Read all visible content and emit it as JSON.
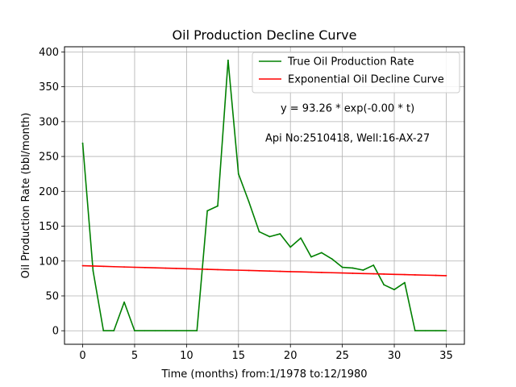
{
  "chart_data": {
    "type": "line",
    "title": "Oil Production Decline Curve",
    "xlabel": "Time (months) from:1/1978 to:12/1980",
    "ylabel": "Oil Production Rate (bbl/month)",
    "xlim": [
      -1.75,
      36.75
    ],
    "ylim": [
      -19.4,
      407.4
    ],
    "x_ticks": [
      0,
      5,
      10,
      15,
      20,
      25,
      30,
      35
    ],
    "y_ticks": [
      0,
      50,
      100,
      150,
      200,
      250,
      300,
      350,
      400
    ],
    "grid": true,
    "legend_position": "top-right",
    "series": [
      {
        "name": "True Oil Production Rate",
        "color": "#008000",
        "x": [
          0,
          1,
          2,
          3,
          4,
          5,
          6,
          7,
          8,
          9,
          10,
          11,
          12,
          13,
          14,
          15,
          16,
          17,
          18,
          19,
          20,
          21,
          22,
          23,
          24,
          25,
          26,
          27,
          28,
          29,
          30,
          31,
          32,
          33,
          34,
          35
        ],
        "values": [
          269,
          86,
          0,
          0,
          41,
          0,
          0,
          0,
          0,
          0,
          0,
          0,
          172,
          179,
          388,
          225,
          185,
          142,
          135,
          139,
          120,
          133,
          106,
          112,
          103,
          91,
          90,
          87,
          94,
          66,
          59,
          69,
          0,
          0,
          0,
          0
        ]
      },
      {
        "name": "Exponential Oil Decline Curve",
        "color": "#ff0000",
        "x": [
          0,
          1,
          2,
          3,
          4,
          5,
          6,
          7,
          8,
          9,
          10,
          11,
          12,
          13,
          14,
          15,
          16,
          17,
          18,
          19,
          20,
          21,
          22,
          23,
          24,
          25,
          26,
          27,
          28,
          29,
          30,
          31,
          32,
          33,
          34,
          35
        ],
        "values": [
          93.26,
          92.82,
          92.38,
          91.94,
          91.5,
          91.07,
          90.64,
          90.21,
          89.78,
          89.36,
          88.94,
          88.52,
          88.1,
          87.68,
          87.27,
          86.86,
          86.45,
          86.04,
          85.63,
          85.23,
          84.83,
          84.43,
          84.03,
          83.63,
          83.24,
          82.85,
          82.46,
          82.07,
          81.68,
          81.3,
          80.92,
          80.54,
          80.16,
          79.78,
          79.4,
          79.03
        ]
      }
    ],
    "annotations": [
      {
        "text": "y = 93.26 * exp(-0.00 * t)",
        "x": 25.5,
        "y": 320
      },
      {
        "text": "Api No:2510418, Well:16-AX-27",
        "x": 25.5,
        "y": 277
      }
    ]
  }
}
